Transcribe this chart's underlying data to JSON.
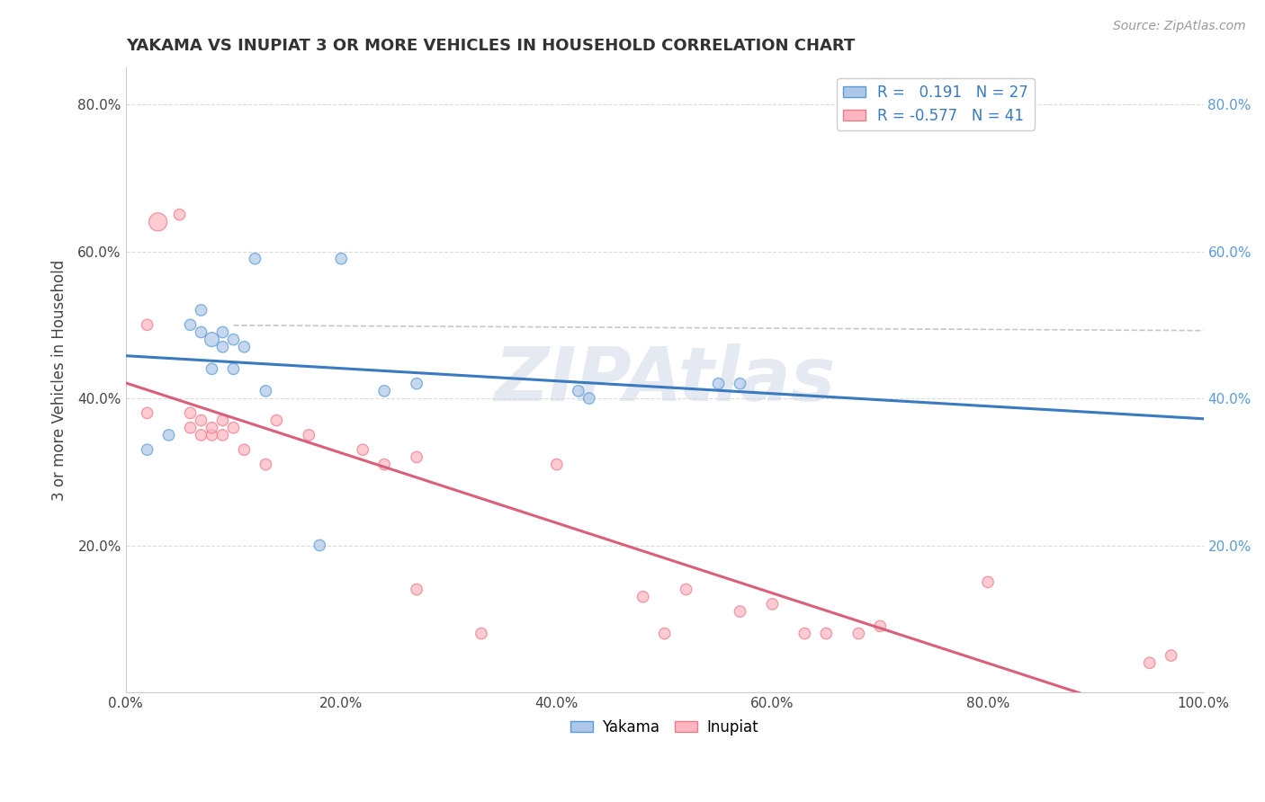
{
  "title": "YAKAMA VS INUPIAT 3 OR MORE VEHICLES IN HOUSEHOLD CORRELATION CHART",
  "source": "Source: ZipAtlas.com",
  "ylabel": "3 or more Vehicles in Household",
  "legend_yakama": "Yakama",
  "legend_inupiat": "Inupiat",
  "r_yakama": 0.191,
  "n_yakama": 27,
  "r_inupiat": -0.577,
  "n_inupiat": 41,
  "xlim": [
    0.0,
    1.0
  ],
  "ylim": [
    0.0,
    0.85
  ],
  "xticks": [
    0.0,
    0.2,
    0.4,
    0.6,
    0.8,
    1.0
  ],
  "xticklabels": [
    "0.0%",
    "20.0%",
    "40.0%",
    "60.0%",
    "80.0%",
    "100.0%"
  ],
  "yticks": [
    0.0,
    0.2,
    0.4,
    0.6,
    0.8
  ],
  "yticklabels": [
    "",
    "20.0%",
    "40.0%",
    "60.0%",
    "80.0%"
  ],
  "right_yticklabels": [
    "20.0%",
    "40.0%",
    "60.0%",
    "80.0%"
  ],
  "right_yticks": [
    0.2,
    0.4,
    0.6,
    0.8
  ],
  "color_yakama": "#aec7e8",
  "color_inupiat": "#ffb6c1",
  "color_yakama_edge": "#5b9bd5",
  "color_inupiat_edge": "#e87d8a",
  "color_yakama_line": "#3a7abf",
  "color_inupiat_line": "#d9607a",
  "color_dashed": "#b0b0b0",
  "background_color": "#ffffff",
  "watermark": "ZIPAtlas",
  "watermark_color": "#d0d8e8",
  "grid_color": "#d8d8d8",
  "yakama_x": [
    0.02,
    0.04,
    0.06,
    0.07,
    0.07,
    0.08,
    0.08,
    0.09,
    0.09,
    0.1,
    0.1,
    0.11,
    0.12,
    0.13,
    0.18,
    0.2,
    0.24,
    0.27,
    0.42,
    0.43,
    0.55,
    0.57
  ],
  "yakama_y": [
    0.33,
    0.35,
    0.5,
    0.49,
    0.52,
    0.44,
    0.48,
    0.47,
    0.49,
    0.44,
    0.48,
    0.47,
    0.59,
    0.41,
    0.2,
    0.59,
    0.41,
    0.42,
    0.41,
    0.4,
    0.42,
    0.42
  ],
  "yakama_size": [
    80,
    80,
    80,
    80,
    80,
    80,
    130,
    80,
    80,
    80,
    80,
    80,
    80,
    80,
    80,
    80,
    80,
    80,
    80,
    80,
    80,
    80
  ],
  "inupiat_x": [
    0.02,
    0.02,
    0.03,
    0.05,
    0.06,
    0.06,
    0.07,
    0.07,
    0.08,
    0.08,
    0.09,
    0.09,
    0.1,
    0.11,
    0.13,
    0.14,
    0.17,
    0.22,
    0.24,
    0.27,
    0.27,
    0.33,
    0.4,
    0.48,
    0.5,
    0.52,
    0.57,
    0.6,
    0.63,
    0.65,
    0.68,
    0.7,
    0.8,
    0.95,
    0.97
  ],
  "inupiat_y": [
    0.5,
    0.38,
    0.64,
    0.65,
    0.36,
    0.38,
    0.35,
    0.37,
    0.35,
    0.36,
    0.35,
    0.37,
    0.36,
    0.33,
    0.31,
    0.37,
    0.35,
    0.33,
    0.31,
    0.14,
    0.32,
    0.08,
    0.31,
    0.13,
    0.08,
    0.14,
    0.11,
    0.12,
    0.08,
    0.08,
    0.08,
    0.09,
    0.15,
    0.04,
    0.05
  ],
  "inupiat_size": [
    80,
    80,
    210,
    80,
    80,
    80,
    80,
    80,
    80,
    80,
    80,
    80,
    80,
    80,
    80,
    80,
    80,
    80,
    80,
    80,
    80,
    80,
    80,
    80,
    80,
    80,
    80,
    80,
    80,
    80,
    80,
    80,
    80,
    80,
    80
  ]
}
